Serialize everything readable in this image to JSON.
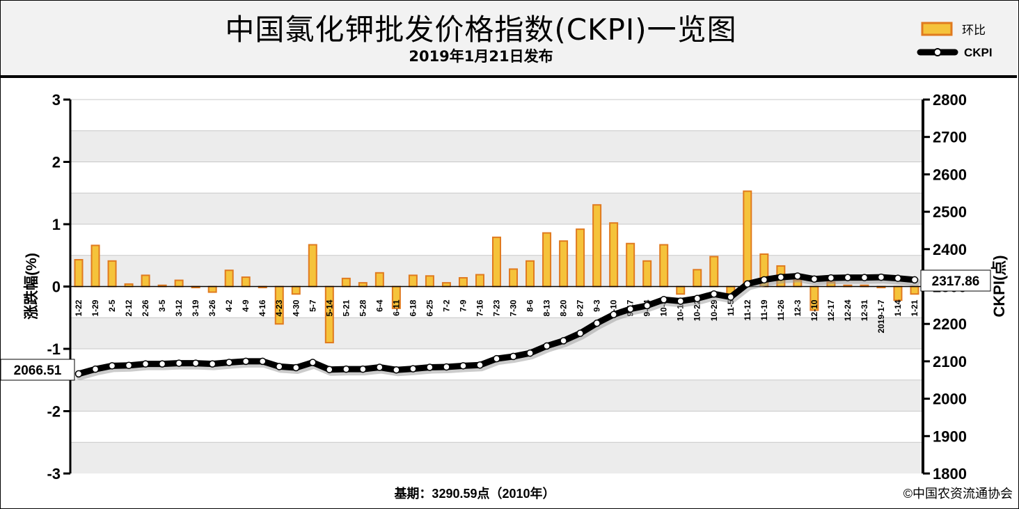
{
  "header": {
    "title": "中国氯化钾批发价格指数(CKPI)一览图",
    "subtitle": "2019年1月21日发布"
  },
  "legend": {
    "bar_label": "环比",
    "line_label": "CKPI"
  },
  "footer": {
    "base_period": "基期：3290.59点（2010年）",
    "copyright": "©中国农资流通协会"
  },
  "callouts": {
    "start_value": "2066.51",
    "end_value": "2317.86"
  },
  "colors": {
    "bar_fill": "#f5c33b",
    "bar_edge": "#e07a1f",
    "line": "#000000",
    "band": "#ececec"
  },
  "chart_data": {
    "type": "bar+line",
    "categories": [
      "1-22",
      "1-29",
      "2-5",
      "2-12",
      "2-26",
      "3-5",
      "3-12",
      "3-19",
      "3-26",
      "4-2",
      "4-9",
      "4-16",
      "4-23",
      "4-30",
      "5-7",
      "5-14",
      "5-21",
      "5-28",
      "6-4",
      "6-11",
      "6-18",
      "6-25",
      "7-2",
      "7-9",
      "7-16",
      "7-23",
      "7-30",
      "8-6",
      "8-13",
      "8-20",
      "8-27",
      "9-3",
      "9-10",
      "9-17",
      "9-24",
      "10-8",
      "10-15",
      "10-22",
      "10-29",
      "11-5",
      "11-12",
      "11-19",
      "11-26",
      "12-3",
      "12-10",
      "12-17",
      "12-24",
      "12-31",
      "2019-1-7",
      "1-14",
      "1-21"
    ],
    "series": [
      {
        "name": "环比",
        "axis": "left",
        "type": "bar",
        "values": [
          0.43,
          0.66,
          0.41,
          0.04,
          0.18,
          0.02,
          0.1,
          0.0,
          -0.09,
          0.26,
          0.15,
          0.0,
          -0.6,
          -0.12,
          0.67,
          -0.9,
          0.13,
          0.06,
          0.22,
          -0.35,
          0.18,
          0.17,
          0.06,
          0.14,
          0.19,
          0.79,
          0.28,
          0.41,
          0.86,
          0.73,
          0.92,
          1.31,
          1.02,
          0.69,
          0.41,
          0.67,
          -0.12,
          0.27,
          0.48,
          -0.12,
          1.53,
          0.52,
          0.33,
          0.1,
          -0.38,
          0.07,
          0.02,
          0.02,
          0.0,
          -0.22,
          -0.12
        ]
      },
      {
        "name": "CKPI",
        "axis": "right",
        "type": "line",
        "values": [
          2066.51,
          2079,
          2088,
          2089,
          2093,
          2093,
          2095,
          2095,
          2093,
          2097,
          2100,
          2100,
          2086,
          2083,
          2097,
          2078,
          2079,
          2079,
          2084,
          2077,
          2080,
          2084,
          2085,
          2088,
          2090,
          2107,
          2113,
          2122,
          2141,
          2155,
          2175,
          2202,
          2225,
          2240,
          2249,
          2265,
          2261,
          2268,
          2280,
          2272,
          2307,
          2318,
          2325,
          2328,
          2320,
          2323,
          2324,
          2324,
          2325,
          2322,
          2317.86
        ]
      }
    ],
    "left_axis": {
      "label": "涨跌幅(%)",
      "min": -3,
      "max": 3,
      "ticks": [
        3,
        2,
        1,
        0,
        -1,
        -2,
        -3
      ]
    },
    "right_axis": {
      "label": "CKPI(点)",
      "min": 1800,
      "max": 2800,
      "ticks": [
        2800,
        2700,
        2600,
        2500,
        2400,
        2300,
        2200,
        2100,
        2000,
        1900,
        1800
      ]
    }
  }
}
